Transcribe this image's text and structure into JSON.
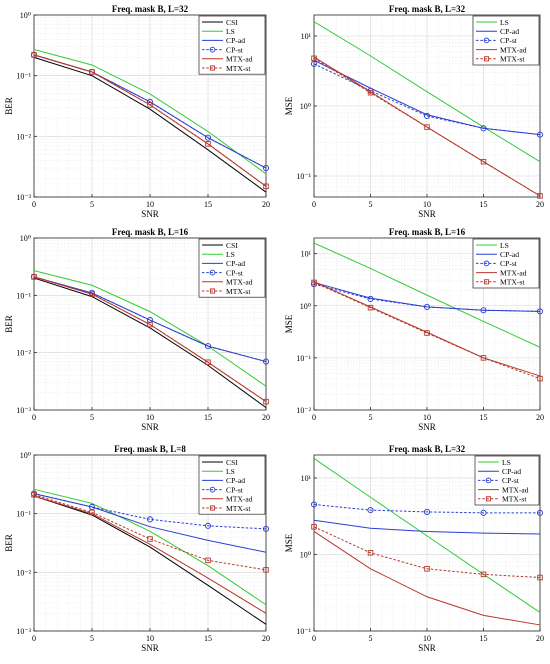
{
  "series_styles": {
    "CSI": {
      "color": "#000000",
      "dash": false,
      "marker": false
    },
    "LS": {
      "color": "#33cc33",
      "dash": false,
      "marker": false
    },
    "CP-ad": {
      "color": "#2a3fd4",
      "dash": false,
      "marker": false
    },
    "CP-st": {
      "color": "#2a3fd4",
      "dash": true,
      "marker": "circle"
    },
    "MTX-ad": {
      "color": "#b5382a",
      "dash": false,
      "marker": false
    },
    "MTX-st": {
      "color": "#b5382a",
      "dash": true,
      "marker": "square"
    }
  },
  "chart_data": [
    {
      "type": "line",
      "title": "Freq. mask B, L=32",
      "xlabel": "SNR",
      "ylabel": "BER",
      "yscale": "log",
      "xlim": [
        0,
        20
      ],
      "ylim_exp": [
        -3,
        0
      ],
      "xticks": [
        "0",
        "5",
        "10",
        "15",
        "20"
      ],
      "yticks": [
        "10⁻³",
        "10⁻²",
        "10⁻¹",
        "10⁰"
      ],
      "grid": true,
      "legend": "top-right",
      "x": [
        0,
        5,
        10,
        15,
        20
      ],
      "series": [
        {
          "name": "CSI",
          "values": [
            0.2,
            0.1,
            0.028,
            0.006,
            0.0012
          ]
        },
        {
          "name": "LS",
          "values": [
            0.27,
            0.15,
            0.05,
            0.012,
            0.0024
          ]
        },
        {
          "name": "CP-ad",
          "values": [
            0.22,
            0.115,
            0.037,
            0.0095,
            0.003
          ]
        },
        {
          "name": "CP-st",
          "values": [
            0.22,
            0.115,
            0.037,
            0.0095,
            0.003
          ]
        },
        {
          "name": "MTX-ad",
          "values": [
            0.22,
            0.115,
            0.033,
            0.0075,
            0.0015
          ]
        },
        {
          "name": "MTX-st",
          "values": [
            0.22,
            0.115,
            0.033,
            0.0075,
            0.0015
          ]
        }
      ]
    },
    {
      "type": "line",
      "title": "Freq. mask B, L=32",
      "xlabel": "SNR",
      "ylabel": "MSE",
      "yscale": "log",
      "xlim": [
        0,
        20
      ],
      "ylim_exp": [
        -1.3,
        1.3
      ],
      "xticks": [
        "0",
        "5",
        "10",
        "15",
        "20"
      ],
      "yticks": [
        "10⁻¹",
        "10⁰",
        "10¹"
      ],
      "grid": true,
      "legend": "top-right",
      "x": [
        0,
        5,
        10,
        15,
        20
      ],
      "series": [
        {
          "name": "LS",
          "values": [
            16,
            5.2,
            1.6,
            0.5,
            0.16
          ]
        },
        {
          "name": "CP-ad",
          "values": [
            4.5,
            1.8,
            0.75,
            0.48,
            0.39
          ]
        },
        {
          "name": "CP-st",
          "values": [
            4.0,
            1.65,
            0.72,
            0.48,
            0.39
          ]
        },
        {
          "name": "MTX-ad",
          "values": [
            5,
            1.6,
            0.5,
            0.16,
            0.052
          ]
        },
        {
          "name": "MTX-st",
          "values": [
            4.8,
            1.55,
            0.5,
            0.16,
            0.052
          ]
        }
      ]
    },
    {
      "type": "line",
      "title": "Freq. mask B, L=16",
      "xlabel": "SNR",
      "ylabel": "BER",
      "yscale": "log",
      "xlim": [
        0,
        20
      ],
      "ylim_exp": [
        -3,
        0
      ],
      "xticks": [
        "0",
        "5",
        "10",
        "15",
        "20"
      ],
      "yticks": [
        "10⁻³",
        "10⁻²",
        "10⁻¹",
        "10⁰"
      ],
      "grid": true,
      "legend": "top-right",
      "x": [
        0,
        5,
        10,
        15,
        20
      ],
      "series": [
        {
          "name": "CSI",
          "values": [
            0.2,
            0.095,
            0.027,
            0.006,
            0.0011
          ]
        },
        {
          "name": "LS",
          "values": [
            0.27,
            0.15,
            0.052,
            0.013,
            0.0026
          ]
        },
        {
          "name": "CP-ad",
          "values": [
            0.21,
            0.11,
            0.037,
            0.013,
            0.007
          ]
        },
        {
          "name": "CP-st",
          "values": [
            0.21,
            0.11,
            0.037,
            0.013,
            0.007
          ]
        },
        {
          "name": "MTX-ad",
          "values": [
            0.21,
            0.105,
            0.031,
            0.0068,
            0.0014
          ]
        },
        {
          "name": "MTX-st",
          "values": [
            0.21,
            0.105,
            0.031,
            0.0068,
            0.0014
          ]
        }
      ]
    },
    {
      "type": "line",
      "title": "Freq. mask B, L=16",
      "xlabel": "SNR",
      "ylabel": "MSE",
      "yscale": "log",
      "xlim": [
        0,
        20
      ],
      "ylim_exp": [
        -2,
        1.3
      ],
      "xticks": [
        "0",
        "5",
        "10",
        "15",
        "20"
      ],
      "yticks": [
        "10⁻²",
        "10⁻¹",
        "10⁰",
        "10¹"
      ],
      "grid": true,
      "legend": "top-right",
      "x": [
        0,
        5,
        10,
        15,
        20
      ],
      "series": [
        {
          "name": "LS",
          "values": [
            16,
            5.2,
            1.6,
            0.5,
            0.16
          ]
        },
        {
          "name": "CP-ad",
          "values": [
            2.8,
            1.4,
            0.95,
            0.82,
            0.78
          ]
        },
        {
          "name": "CP-st",
          "values": [
            2.6,
            1.35,
            0.95,
            0.82,
            0.78
          ]
        },
        {
          "name": "MTX-ad",
          "values": [
            2.9,
            0.95,
            0.31,
            0.1,
            0.045
          ]
        },
        {
          "name": "MTX-st",
          "values": [
            2.8,
            0.92,
            0.3,
            0.1,
            0.04
          ]
        }
      ]
    },
    {
      "type": "line",
      "title": "Freq. mask B, L=8",
      "xlabel": "SNR",
      "ylabel": "BER",
      "yscale": "log",
      "xlim": [
        0,
        20
      ],
      "ylim_exp": [
        -3,
        0
      ],
      "xticks": [
        "0",
        "5",
        "10",
        "15",
        "20"
      ],
      "yticks": [
        "10⁻³",
        "10⁻²",
        "10⁻¹",
        "10⁰"
      ],
      "grid": true,
      "legend": "top-right",
      "x": [
        0,
        5,
        10,
        15,
        20
      ],
      "series": [
        {
          "name": "CSI",
          "values": [
            0.2,
            0.095,
            0.027,
            0.006,
            0.0013
          ]
        },
        {
          "name": "LS",
          "values": [
            0.26,
            0.15,
            0.05,
            0.013,
            0.0028
          ]
        },
        {
          "name": "CP-ad",
          "values": [
            0.22,
            0.13,
            0.06,
            0.035,
            0.022
          ]
        },
        {
          "name": "CP-st",
          "values": [
            0.22,
            0.13,
            0.08,
            0.062,
            0.055
          ]
        },
        {
          "name": "MTX-ad",
          "values": [
            0.2,
            0.1,
            0.03,
            0.008,
            0.002
          ]
        },
        {
          "name": "MTX-st",
          "values": [
            0.21,
            0.105,
            0.037,
            0.016,
            0.011
          ]
        }
      ]
    },
    {
      "type": "line",
      "title": "Freq. mask B, L=32",
      "xlabel": "SNR",
      "ylabel": "MSE",
      "yscale": "log",
      "xlim": [
        0,
        20
      ],
      "ylim_exp": [
        -1,
        1.3
      ],
      "xticks": [
        "0",
        "5",
        "10",
        "15",
        "20"
      ],
      "yticks": [
        "10⁻¹",
        "10⁰",
        "10¹"
      ],
      "grid": true,
      "legend": "top-right",
      "x": [
        0,
        5,
        10,
        15,
        20
      ],
      "series": [
        {
          "name": "LS",
          "values": [
            18,
            5.6,
            1.75,
            0.55,
            0.175
          ]
        },
        {
          "name": "CP-ad",
          "values": [
            2.8,
            2.2,
            2.0,
            1.9,
            1.85
          ]
        },
        {
          "name": "CP-st",
          "values": [
            4.5,
            3.8,
            3.6,
            3.5,
            3.5
          ]
        },
        {
          "name": "MTX-ad",
          "values": [
            2.0,
            0.65,
            0.28,
            0.16,
            0.12
          ]
        },
        {
          "name": "MTX-st",
          "values": [
            2.3,
            1.05,
            0.65,
            0.55,
            0.5
          ]
        }
      ]
    }
  ]
}
